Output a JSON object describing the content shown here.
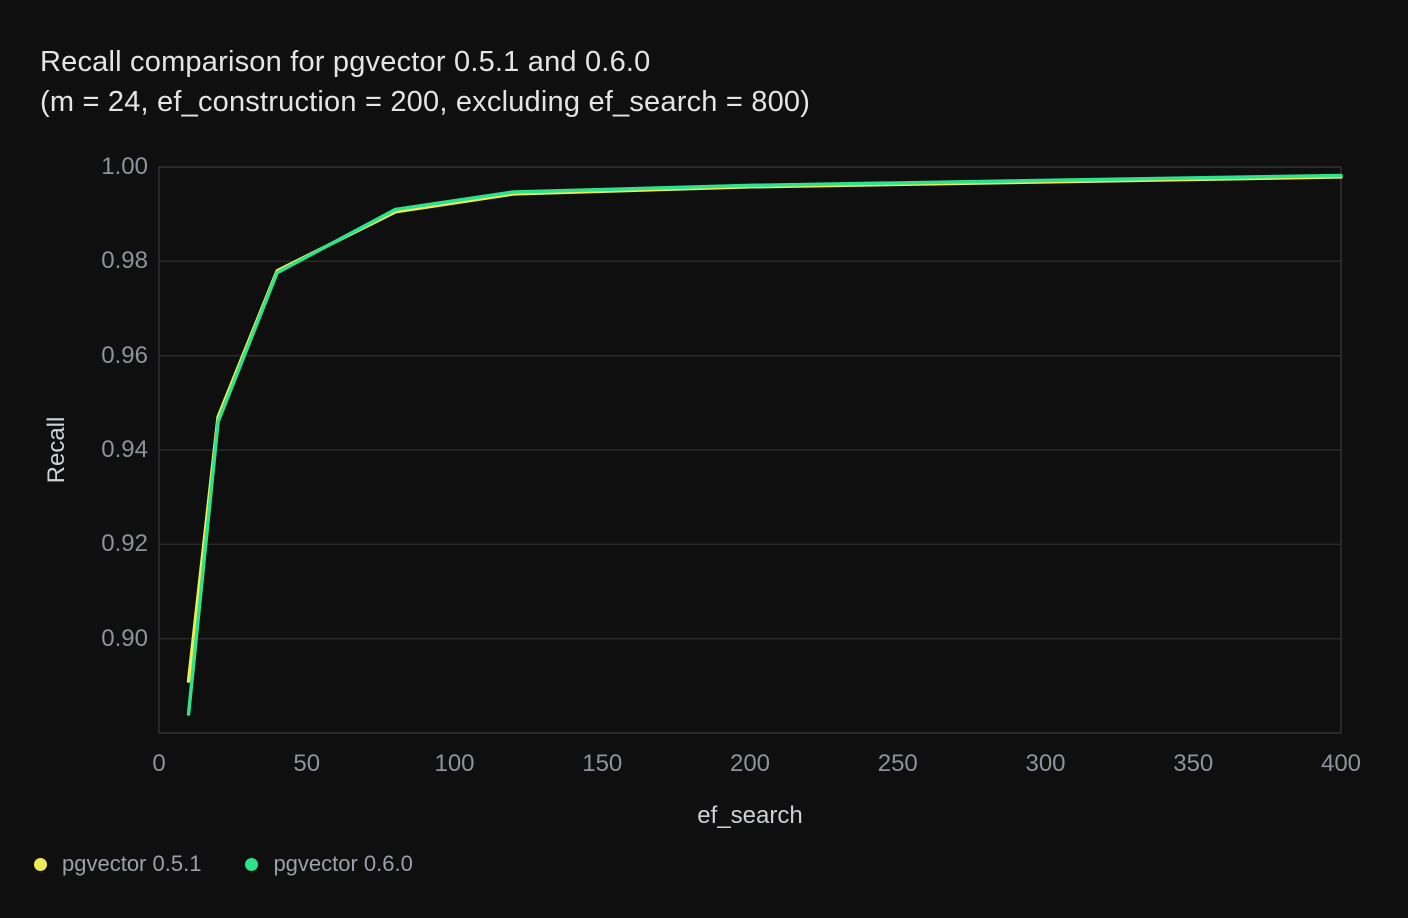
{
  "colors": {
    "background": "#0f0f0f",
    "title_text": "#e4e4e6",
    "axis_title_text": "#ced1d6",
    "tick_text": "#8d929c",
    "legend_text": "#9ba0a8",
    "grid": "#2c2c2c",
    "plot_border": "#2e2e2e",
    "series_051": "#eeec56",
    "series_060": "#2de28b"
  },
  "chart_data": {
    "type": "line",
    "title": "Recall comparison for pgvector 0.5.1 and 0.6.0",
    "subtitle": "(m = 24, ef_construction = 200, excluding ef_search = 800)",
    "xlabel": "ef_search",
    "ylabel": "Recall",
    "x": [
      10,
      20,
      40,
      80,
      120,
      200,
      400
    ],
    "series": [
      {
        "name": "pgvector 0.5.1",
        "color": "#eeec56",
        "values": [
          0.891,
          0.947,
          0.978,
          0.9905,
          0.9943,
          0.9958,
          0.9979
        ]
      },
      {
        "name": "pgvector 0.6.0",
        "color": "#2de28b",
        "values": [
          0.884,
          0.946,
          0.9776,
          0.991,
          0.9947,
          0.9961,
          0.9982
        ]
      }
    ],
    "xlim": [
      0,
      400
    ],
    "ylim": [
      0.88,
      1.0
    ],
    "x_ticks": [
      0,
      50,
      100,
      150,
      200,
      250,
      300,
      350,
      400
    ],
    "y_ticks": [
      "1.00",
      "0.98",
      "0.96",
      "0.94",
      "0.92",
      "0.90"
    ],
    "grid": "horizontal",
    "grid_color": "#2c2c2c",
    "border_color": "#2e2e2e",
    "legend_position": "bottom-left"
  }
}
